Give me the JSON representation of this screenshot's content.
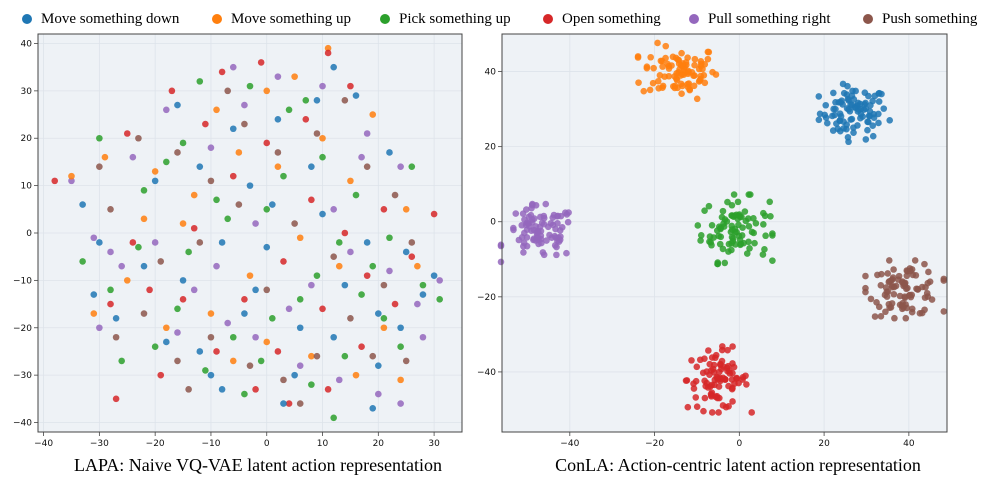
{
  "legend": [
    {
      "label": "Move something down",
      "color": "#1f77b4"
    },
    {
      "label": "Move something up",
      "color": "#ff7f0e"
    },
    {
      "label": "Pick something up",
      "color": "#2ca02c"
    },
    {
      "label": "Open something",
      "color": "#d62728"
    },
    {
      "label": "Pull something right",
      "color": "#9467bd"
    },
    {
      "label": "Push something",
      "color": "#8c564b"
    }
  ],
  "colors": {
    "panel_bg": "#eef2f6",
    "grid": "#dde3ea",
    "axis": "#444444"
  },
  "chart_data": [
    {
      "type": "scatter",
      "title": "LAPA: Naive VQ-VAE latent action representation",
      "xlabel": "",
      "ylabel": "",
      "xlim": [
        -41,
        35
      ],
      "ylim": [
        -42,
        42
      ],
      "xticks": [
        "−40",
        "−30",
        "−20",
        "−10",
        "0",
        "10",
        "20",
        "30"
      ],
      "yticks": [
        "−40",
        "−30",
        "−20",
        "−10",
        "0",
        "10",
        "20",
        "30",
        "40"
      ],
      "grid": true,
      "series": [
        {
          "name": "Move something down",
          "points": [
            [
              -27,
              -18
            ],
            [
              -18,
              -23
            ],
            [
              -10,
              -30
            ],
            [
              -8,
              -33
            ],
            [
              -2,
              -12
            ],
            [
              5,
              -30
            ],
            [
              12,
              -22
            ],
            [
              20,
              -28
            ],
            [
              24,
              -20
            ],
            [
              28,
              -13
            ],
            [
              -33,
              6
            ],
            [
              -30,
              -2
            ],
            [
              -20,
              11
            ],
            [
              -12,
              14
            ],
            [
              -6,
              22
            ],
            [
              2,
              24
            ],
            [
              9,
              28
            ],
            [
              16,
              29
            ],
            [
              22,
              17
            ],
            [
              18,
              -2
            ],
            [
              10,
              4
            ],
            [
              1,
              6
            ],
            [
              -8,
              -2
            ],
            [
              -15,
              -10
            ],
            [
              -22,
              -7
            ],
            [
              -4,
              -17
            ],
            [
              6,
              -20
            ],
            [
              14,
              -11
            ],
            [
              30,
              -9
            ],
            [
              19,
              -37
            ],
            [
              -12,
              -25
            ],
            [
              0,
              -3
            ],
            [
              -31,
              -13
            ],
            [
              25,
              -4
            ],
            [
              8,
              14
            ],
            [
              -16,
              27
            ],
            [
              12,
              35
            ],
            [
              -3,
              10
            ],
            [
              20,
              -17
            ],
            [
              3,
              -36
            ]
          ]
        },
        {
          "name": "Move something up",
          "points": [
            [
              -29,
              16
            ],
            [
              -20,
              13
            ],
            [
              -13,
              8
            ],
            [
              -5,
              17
            ],
            [
              0,
              30
            ],
            [
              5,
              33
            ],
            [
              11,
              39
            ],
            [
              19,
              25
            ],
            [
              25,
              5
            ],
            [
              27,
              -7
            ],
            [
              16,
              -30
            ],
            [
              8,
              -26
            ],
            [
              0,
              -23
            ],
            [
              -10,
              -17
            ],
            [
              -18,
              -20
            ],
            [
              -25,
              -10
            ],
            [
              -31,
              -17
            ],
            [
              -15,
              2
            ],
            [
              -3,
              -9
            ],
            [
              6,
              -1
            ],
            [
              13,
              -7
            ],
            [
              21,
              -20
            ],
            [
              2,
              14
            ],
            [
              -9,
              26
            ],
            [
              -22,
              3
            ],
            [
              10,
              20
            ],
            [
              -35,
              12
            ],
            [
              24,
              -31
            ],
            [
              -6,
              -27
            ],
            [
              15,
              11
            ]
          ]
        },
        {
          "name": "Pick something up",
          "points": [
            [
              -33,
              -6
            ],
            [
              -28,
              -12
            ],
            [
              -23,
              -3
            ],
            [
              -16,
              -16
            ],
            [
              -11,
              -29
            ],
            [
              -6,
              -22
            ],
            [
              1,
              -18
            ],
            [
              8,
              -32
            ],
            [
              14,
              -26
            ],
            [
              21,
              -18
            ],
            [
              28,
              -11
            ],
            [
              31,
              -14
            ],
            [
              -30,
              20
            ],
            [
              -22,
              9
            ],
            [
              -15,
              19
            ],
            [
              -9,
              7
            ],
            [
              -3,
              31
            ],
            [
              4,
              26
            ],
            [
              10,
              16
            ],
            [
              16,
              8
            ],
            [
              22,
              -1
            ],
            [
              17,
              -13
            ],
            [
              9,
              -9
            ],
            [
              0,
              5
            ],
            [
              -7,
              3
            ],
            [
              -14,
              -4
            ],
            [
              -20,
              -24
            ],
            [
              -4,
              -34
            ],
            [
              6,
              -14
            ],
            [
              12,
              -39
            ],
            [
              -26,
              -27
            ],
            [
              19,
              -7
            ],
            [
              -12,
              32
            ],
            [
              3,
              12
            ],
            [
              26,
              14
            ],
            [
              13,
              -2
            ],
            [
              -18,
              15
            ],
            [
              7,
              28
            ],
            [
              -1,
              -27
            ],
            [
              24,
              -24
            ]
          ]
        },
        {
          "name": "Open something",
          "points": [
            [
              -38,
              11
            ],
            [
              -25,
              21
            ],
            [
              -17,
              30
            ],
            [
              -11,
              23
            ],
            [
              -6,
              12
            ],
            [
              0,
              19
            ],
            [
              7,
              24
            ],
            [
              15,
              31
            ],
            [
              21,
              5
            ],
            [
              26,
              -5
            ],
            [
              30,
              4
            ],
            [
              23,
              -15
            ],
            [
              17,
              -24
            ],
            [
              11,
              -33
            ],
            [
              4,
              -36
            ],
            [
              -2,
              -33
            ],
            [
              -9,
              -25
            ],
            [
              -15,
              -14
            ],
            [
              -21,
              -12
            ],
            [
              -28,
              -15
            ],
            [
              -24,
              -2
            ],
            [
              -13,
              1
            ],
            [
              -4,
              -14
            ],
            [
              3,
              -6
            ],
            [
              10,
              -16
            ],
            [
              18,
              -9
            ],
            [
              -8,
              34
            ],
            [
              11,
              38
            ],
            [
              -19,
              -30
            ],
            [
              2,
              -25
            ],
            [
              -1,
              36
            ],
            [
              14,
              0
            ],
            [
              -27,
              -35
            ],
            [
              8,
              7
            ]
          ]
        },
        {
          "name": "Pull something right",
          "points": [
            [
              -35,
              11
            ],
            [
              -31,
              -1
            ],
            [
              -26,
              -7
            ],
            [
              -20,
              -2
            ],
            [
              -13,
              -12
            ],
            [
              -7,
              -19
            ],
            [
              -2,
              -22
            ],
            [
              6,
              -28
            ],
            [
              13,
              -31
            ],
            [
              20,
              -34
            ],
            [
              24,
              -36
            ],
            [
              27,
              -15
            ],
            [
              31,
              -10
            ],
            [
              22,
              -8
            ],
            [
              15,
              -4
            ],
            [
              8,
              -11
            ],
            [
              -18,
              26
            ],
            [
              -10,
              18
            ],
            [
              -4,
              27
            ],
            [
              2,
              33
            ],
            [
              10,
              31
            ],
            [
              18,
              21
            ],
            [
              24,
              14
            ],
            [
              -24,
              16
            ],
            [
              -28,
              -4
            ],
            [
              -6,
              35
            ],
            [
              -16,
              -21
            ],
            [
              28,
              -22
            ],
            [
              4,
              -16
            ],
            [
              -9,
              -7
            ],
            [
              12,
              5
            ],
            [
              -30,
              -20
            ],
            [
              17,
              16
            ],
            [
              -2,
              2
            ]
          ]
        },
        {
          "name": "Push something",
          "points": [
            [
              -30,
              14
            ],
            [
              -23,
              20
            ],
            [
              -16,
              17
            ],
            [
              -10,
              11
            ],
            [
              -4,
              23
            ],
            [
              2,
              17
            ],
            [
              9,
              21
            ],
            [
              14,
              28
            ],
            [
              18,
              14
            ],
            [
              23,
              8
            ],
            [
              26,
              -2
            ],
            [
              21,
              -11
            ],
            [
              15,
              -18
            ],
            [
              9,
              -26
            ],
            [
              3,
              -31
            ],
            [
              -3,
              -28
            ],
            [
              -10,
              -22
            ],
            [
              -16,
              -27
            ],
            [
              -22,
              -17
            ],
            [
              -27,
              -22
            ],
            [
              -28,
              5
            ],
            [
              -19,
              -6
            ],
            [
              -12,
              -2
            ],
            [
              -5,
              6
            ],
            [
              5,
              2
            ],
            [
              12,
              -5
            ],
            [
              19,
              -26
            ],
            [
              -7,
              30
            ],
            [
              6,
              -36
            ],
            [
              25,
              -27
            ],
            [
              -14,
              -33
            ],
            [
              0,
              -12
            ]
          ]
        }
      ]
    },
    {
      "type": "scatter",
      "title": "ConLA: Action-centric latent action representation",
      "xlabel": "",
      "ylabel": "",
      "xlim": [
        -56,
        49
      ],
      "ylim": [
        -56,
        50
      ],
      "xticks": [
        "−40",
        "−20",
        "0",
        "20",
        "40"
      ],
      "yticks": [
        "−40",
        "−20",
        "0",
        "20",
        "40"
      ],
      "grid": true,
      "clusters": [
        {
          "name": "Move something down",
          "center": [
            27,
            29
          ],
          "spread": [
            4,
            3.5
          ],
          "count": 90
        },
        {
          "name": "Move something up",
          "center": [
            -14,
            40
          ],
          "spread": [
            4.5,
            3.5
          ],
          "count": 90
        },
        {
          "name": "Pick something up",
          "center": [
            -1,
            -2
          ],
          "spread": [
            4,
            4.2
          ],
          "count": 90
        },
        {
          "name": "Open something",
          "center": [
            -5,
            -42
          ],
          "spread": [
            3.6,
            4
          ],
          "count": 90
        },
        {
          "name": "Pull something right",
          "center": [
            -47,
            -3
          ],
          "spread": [
            4.2,
            3.5
          ],
          "count": 90
        },
        {
          "name": "Push something",
          "center": [
            39,
            -18
          ],
          "spread": [
            4.2,
            3.5
          ],
          "count": 90
        }
      ]
    }
  ]
}
